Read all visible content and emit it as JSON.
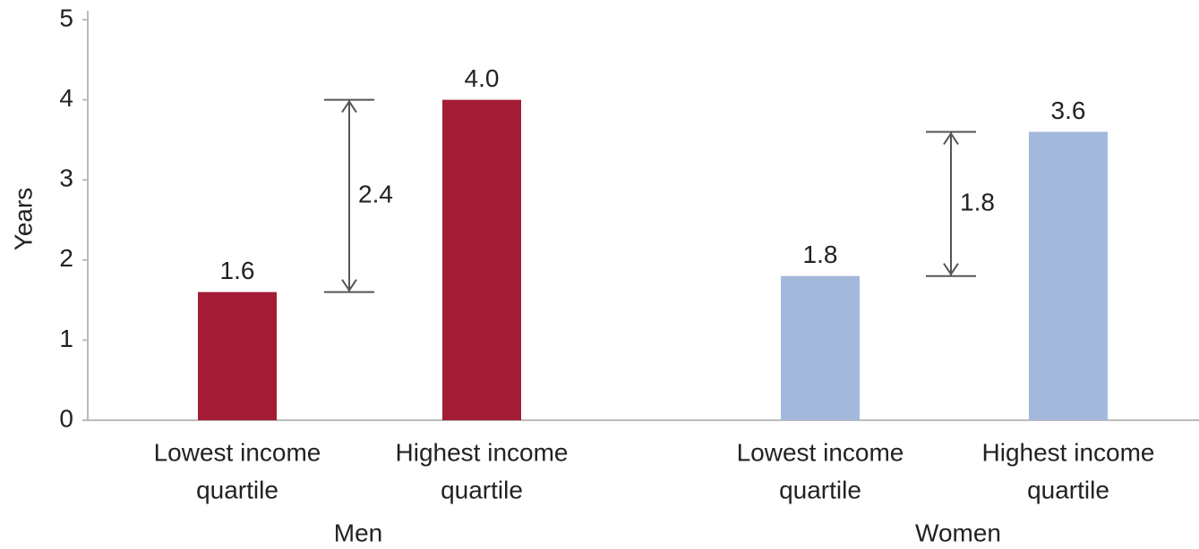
{
  "chart_data": {
    "type": "bar",
    "y_label": "Years",
    "categories": [
      [
        "Lowest income",
        "quartile"
      ],
      [
        "Highest income",
        "quartile"
      ],
      [
        "Lowest income",
        "quartile"
      ],
      [
        "Highest income",
        "quartile"
      ]
    ],
    "groups": [
      "Men",
      "Women"
    ],
    "values": [
      1.6,
      4.0,
      1.8,
      3.6
    ],
    "value_labels": [
      "1.6",
      "4.0",
      "1.8",
      "3.6"
    ],
    "colors": [
      "#a31c35",
      "#a31c35",
      "#a3b8db",
      "#a3b8db"
    ],
    "differences": [
      2.4,
      1.8
    ],
    "ylim": [
      0,
      5
    ],
    "yticks": [
      0,
      1,
      2,
      3,
      4,
      5
    ],
    "grid": false
  }
}
